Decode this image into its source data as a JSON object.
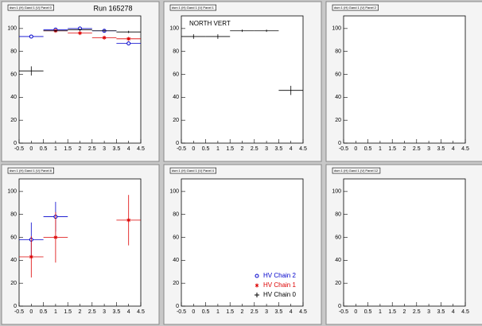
{
  "chart_data": {
    "type": "scatter",
    "title": "Run 165278",
    "x": [
      0,
      1,
      2,
      3,
      4
    ],
    "xlim": [
      -0.5,
      4.5
    ],
    "xticks": [
      -0.5,
      0,
      0.5,
      1,
      1.5,
      2,
      2.5,
      3,
      3.5,
      4,
      4.5
    ],
    "ylim": [
      0,
      111
    ],
    "yticks": [
      0,
      20,
      40,
      60,
      80,
      100
    ],
    "legend_panel": 4,
    "series": [
      {
        "name": "HV Chain 2",
        "color": "#0000cc",
        "marker": "circle"
      },
      {
        "name": "HV Chain 1",
        "color": "#dd0000",
        "marker": "star"
      },
      {
        "name": "HV Chain 0",
        "color": "#000000",
        "marker": "cross"
      }
    ],
    "panels": [
      {
        "title": "dsm 1 (H) Gand 1 (V) Panel 0",
        "series": [
          {
            "values": [
              93,
              99,
              100,
              98,
              87
            ],
            "errors": [
              1,
              1,
              1,
              1,
              1
            ]
          },
          {
            "values": [
              null,
              98,
              96,
              92,
              91
            ],
            "errors": [
              null,
              1,
              1,
              1,
              1
            ]
          },
          {
            "values": [
              63,
              98,
              99,
              98,
              97
            ],
            "errors": [
              4,
              1,
              1,
              1,
              1
            ]
          }
        ]
      },
      {
        "title": "dsm 1 (H) Gand 1 (V) Panel 1",
        "annotation": "NORTH VERT",
        "series": [
          null,
          null,
          {
            "values": [
              93,
              93,
              98,
              98,
              46
            ],
            "errors": [
              2,
              2,
              1,
              1,
              4
            ]
          }
        ]
      },
      {
        "title": "dsm 1 (H) Gand 1 (V) Panel 2",
        "series": [
          null,
          null,
          null
        ]
      },
      {
        "title": "dsm 1 (H) Gand 1 (V) Panel 8",
        "series": [
          {
            "values": [
              58,
              78,
              null,
              null,
              null
            ],
            "errors": [
              15,
              13,
              null,
              null,
              null
            ]
          },
          {
            "values": [
              43,
              60,
              null,
              null,
              75
            ],
            "errors": [
              18,
              22,
              null,
              null,
              22
            ]
          },
          null
        ]
      },
      {
        "title": "dsm 1 (H) Gand 1 (V) Panel 4",
        "series": [
          null,
          null,
          null
        ]
      },
      {
        "title": "dsm 1 (H) Gand 1 (V) Panel 12",
        "series": [
          null,
          null,
          null
        ]
      }
    ]
  }
}
